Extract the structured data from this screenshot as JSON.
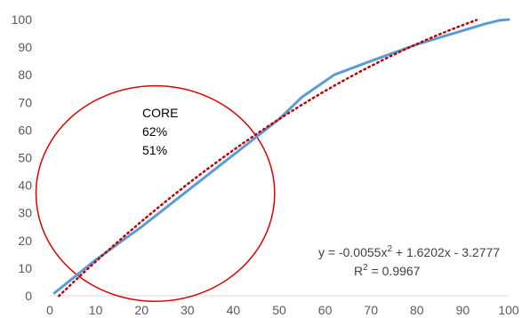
{
  "chart_data": {
    "type": "line",
    "title": "",
    "xlabel": "",
    "ylabel": "",
    "xlim": [
      0,
      100
    ],
    "ylim": [
      0,
      100
    ],
    "x_ticks": [
      0,
      10,
      20,
      30,
      40,
      50,
      60,
      70,
      80,
      90,
      100
    ],
    "y_ticks": [
      0,
      10,
      20,
      30,
      40,
      50,
      60,
      70,
      80,
      90,
      100
    ],
    "grid": false,
    "series": [
      {
        "color": "#5B9BD5",
        "style": "solid",
        "x": [
          1,
          10,
          20,
          30,
          40,
          50,
          55,
          62,
          70,
          80,
          90,
          95,
          98,
          100
        ],
        "y": [
          1,
          13,
          25,
          38,
          51,
          64,
          72,
          80,
          85,
          91,
          96,
          98.5,
          99.7,
          100
        ]
      },
      {
        "color": "#C00000",
        "style": "dotted",
        "trendline": "polynomial-2",
        "coefficients": [
          -0.0055,
          1.6202,
          -3.2777
        ],
        "x_range": [
          2,
          93
        ]
      }
    ],
    "annotations": {
      "circle_label_lines": [
        "CORE",
        "62%",
        "51%"
      ],
      "equation_prefix": "y = -0.0055x",
      "equation_sup": "2",
      "equation_suffix": " + 1.6202x - 3.2777",
      "r2_prefix": "R",
      "r2_sup": "2",
      "r2_suffix": " = 0.9967"
    },
    "ellipse": {
      "color": "#E00000",
      "center": [
        23,
        37
      ],
      "rx": 26,
      "ry": 39
    }
  }
}
